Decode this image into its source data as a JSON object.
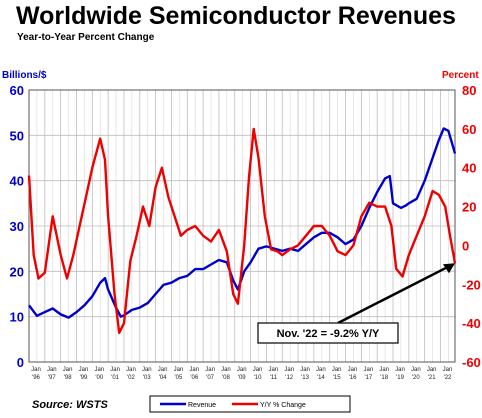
{
  "chart_data": {
    "type": "line",
    "title": "Worldwide Semiconductor Revenues",
    "subtitle": "Year-to-Year Percent Change",
    "y_left_label": "Billions/$",
    "y_right_label": "Percent",
    "y_left_range": [
      0,
      60
    ],
    "y_left_ticks": [
      "0",
      "10",
      "20",
      "30",
      "40",
      "50",
      "60"
    ],
    "y_right_range": [
      -60,
      80
    ],
    "y_right_ticks": [
      "-60",
      "-40",
      "-20",
      "0",
      "20",
      "40",
      "60",
      "80"
    ],
    "x_ticks": [
      {
        "month": "Jan",
        "year": "'96"
      },
      {
        "month": "Jan",
        "year": "'97"
      },
      {
        "month": "Jan",
        "year": "'98"
      },
      {
        "month": "Jan",
        "year": "'99"
      },
      {
        "month": "Jan",
        "year": "'00"
      },
      {
        "month": "Jan",
        "year": "'01"
      },
      {
        "month": "Jan",
        "year": "'02"
      },
      {
        "month": "Jan",
        "year": "'03"
      },
      {
        "month": "Jan",
        "year": "'04"
      },
      {
        "month": "Jan",
        "year": "'05"
      },
      {
        "month": "Jan",
        "year": "'06"
      },
      {
        "month": "Jan",
        "year": "'07"
      },
      {
        "month": "Jan",
        "year": "'08"
      },
      {
        "month": "Jan",
        "year": "'09"
      },
      {
        "month": "Jan",
        "year": "'10"
      },
      {
        "month": "Jan",
        "year": "'11"
      },
      {
        "month": "Jan",
        "year": "'12"
      },
      {
        "month": "Jan",
        "year": "'13"
      },
      {
        "month": "Jan",
        "year": "'14"
      },
      {
        "month": "Jan",
        "year": "'15"
      },
      {
        "month": "Jan",
        "year": "'16"
      },
      {
        "month": "Jan",
        "year": "'17"
      },
      {
        "month": "Jan",
        "year": "'18"
      },
      {
        "month": "Jan",
        "year": "'19"
      },
      {
        "month": "Jan",
        "year": "'20"
      },
      {
        "month": "Jan",
        "year": "'21"
      },
      {
        "month": "Jan",
        "year": "'22"
      }
    ],
    "x_range": [
      1996.0,
      2022.917
    ],
    "grid": true,
    "legend_position": "bottom",
    "series": [
      {
        "name": "Revenue",
        "axis": "left",
        "color": "#0000cc",
        "points": [
          [
            1996.0,
            12.5
          ],
          [
            1996.5,
            10.2
          ],
          [
            1997.0,
            11.0
          ],
          [
            1997.5,
            11.8
          ],
          [
            1998.0,
            10.5
          ],
          [
            1998.5,
            9.8
          ],
          [
            1999.0,
            11.0
          ],
          [
            1999.5,
            12.5
          ],
          [
            2000.0,
            14.5
          ],
          [
            2000.5,
            17.5
          ],
          [
            2000.8,
            18.5
          ],
          [
            2001.0,
            16.0
          ],
          [
            2001.5,
            12.0
          ],
          [
            2001.8,
            10.0
          ],
          [
            2002.0,
            10.3
          ],
          [
            2002.5,
            11.5
          ],
          [
            2003.0,
            12.0
          ],
          [
            2003.5,
            13.0
          ],
          [
            2004.0,
            15.0
          ],
          [
            2004.5,
            17.0
          ],
          [
            2005.0,
            17.5
          ],
          [
            2005.5,
            18.5
          ],
          [
            2006.0,
            19.0
          ],
          [
            2006.5,
            20.5
          ],
          [
            2007.0,
            20.5
          ],
          [
            2007.5,
            21.5
          ],
          [
            2008.0,
            22.5
          ],
          [
            2008.5,
            22.0
          ],
          [
            2008.9,
            18.0
          ],
          [
            2009.2,
            16.0
          ],
          [
            2009.6,
            20.0
          ],
          [
            2010.0,
            22.0
          ],
          [
            2010.5,
            25.0
          ],
          [
            2011.0,
            25.5
          ],
          [
            2011.5,
            25.0
          ],
          [
            2012.0,
            24.5
          ],
          [
            2012.5,
            25.0
          ],
          [
            2013.0,
            24.5
          ],
          [
            2013.5,
            26.0
          ],
          [
            2014.0,
            27.5
          ],
          [
            2014.5,
            28.5
          ],
          [
            2015.0,
            28.5
          ],
          [
            2015.5,
            27.5
          ],
          [
            2016.0,
            26.0
          ],
          [
            2016.5,
            27.0
          ],
          [
            2017.0,
            30.0
          ],
          [
            2017.5,
            34.0
          ],
          [
            2018.0,
            37.5
          ],
          [
            2018.5,
            40.5
          ],
          [
            2018.8,
            41.0
          ],
          [
            2019.0,
            35.0
          ],
          [
            2019.5,
            34.0
          ],
          [
            2019.8,
            34.5
          ],
          [
            2020.0,
            35.0
          ],
          [
            2020.5,
            36.0
          ],
          [
            2021.0,
            40.0
          ],
          [
            2021.5,
            45.0
          ],
          [
            2021.9,
            49.0
          ],
          [
            2022.2,
            51.5
          ],
          [
            2022.5,
            51.0
          ],
          [
            2022.917,
            46.0
          ]
        ]
      },
      {
        "name": "Y/Y % Change",
        "axis": "right",
        "color": "#ee0000",
        "points": [
          [
            1996.0,
            36.0
          ],
          [
            1996.3,
            -5.0
          ],
          [
            1996.6,
            -17.0
          ],
          [
            1997.0,
            -14.0
          ],
          [
            1997.5,
            15.0
          ],
          [
            1998.0,
            -5.0
          ],
          [
            1998.4,
            -17.0
          ],
          [
            1998.8,
            -5.0
          ],
          [
            1999.2,
            10.0
          ],
          [
            1999.6,
            25.0
          ],
          [
            2000.0,
            40.0
          ],
          [
            2000.5,
            55.0
          ],
          [
            2000.8,
            44.0
          ],
          [
            2001.0,
            15.0
          ],
          [
            2001.4,
            -25.0
          ],
          [
            2001.7,
            -45.0
          ],
          [
            2002.0,
            -40.0
          ],
          [
            2002.4,
            -8.0
          ],
          [
            2002.8,
            5.0
          ],
          [
            2003.2,
            20.0
          ],
          [
            2003.6,
            10.0
          ],
          [
            2004.0,
            30.0
          ],
          [
            2004.4,
            40.0
          ],
          [
            2004.8,
            25.0
          ],
          [
            2005.2,
            15.0
          ],
          [
            2005.6,
            5.0
          ],
          [
            2006.0,
            8.0
          ],
          [
            2006.5,
            10.0
          ],
          [
            2007.0,
            5.0
          ],
          [
            2007.5,
            2.0
          ],
          [
            2008.0,
            8.0
          ],
          [
            2008.5,
            -3.0
          ],
          [
            2008.9,
            -25.0
          ],
          [
            2009.2,
            -30.0
          ],
          [
            2009.6,
            0.0
          ],
          [
            2009.9,
            35.0
          ],
          [
            2010.2,
            60.0
          ],
          [
            2010.5,
            45.0
          ],
          [
            2010.9,
            15.0
          ],
          [
            2011.3,
            -2.0
          ],
          [
            2011.7,
            -3.0
          ],
          [
            2012.0,
            -5.0
          ],
          [
            2012.5,
            -2.0
          ],
          [
            2013.0,
            0.0
          ],
          [
            2013.5,
            5.0
          ],
          [
            2014.0,
            10.0
          ],
          [
            2014.5,
            10.0
          ],
          [
            2015.0,
            5.0
          ],
          [
            2015.5,
            -3.0
          ],
          [
            2016.0,
            -5.0
          ],
          [
            2016.5,
            0.0
          ],
          [
            2017.0,
            15.0
          ],
          [
            2017.5,
            22.0
          ],
          [
            2018.0,
            20.0
          ],
          [
            2018.5,
            20.0
          ],
          [
            2018.9,
            10.0
          ],
          [
            2019.2,
            -12.0
          ],
          [
            2019.6,
            -16.0
          ],
          [
            2020.0,
            -5.0
          ],
          [
            2020.5,
            5.0
          ],
          [
            2021.0,
            15.0
          ],
          [
            2021.5,
            28.0
          ],
          [
            2021.9,
            26.0
          ],
          [
            2022.3,
            20.0
          ],
          [
            2022.6,
            5.0
          ],
          [
            2022.917,
            -9.2
          ]
        ]
      }
    ],
    "annotation": {
      "text": "Nov. '22 = -9.2% Y/Y",
      "target_x": 2022.917,
      "target_y_right": -9.2
    }
  },
  "source": "Source: WSTS",
  "colors": {
    "revenue": "#0000cc",
    "yy_change": "#ee0000",
    "grid": "#bbbbbb"
  }
}
